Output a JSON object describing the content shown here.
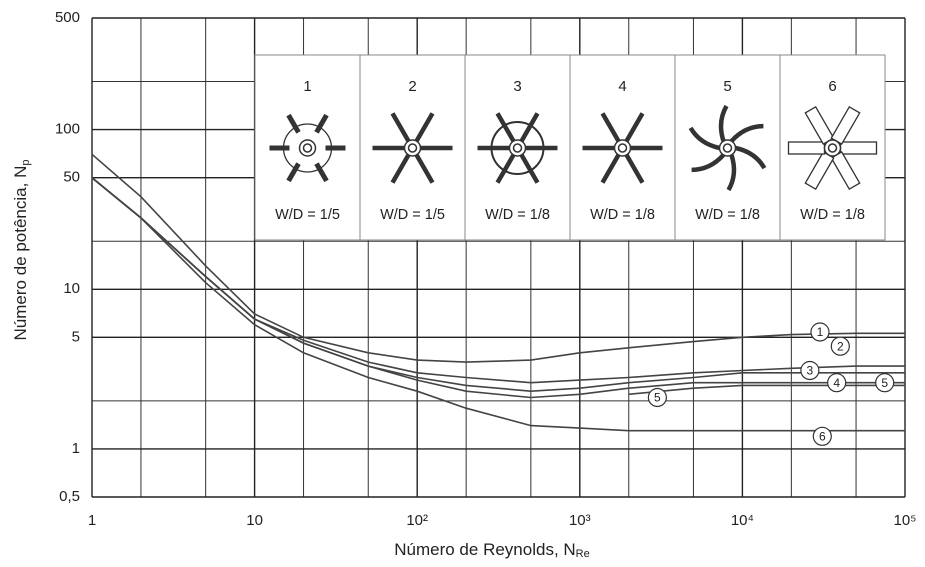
{
  "chart_data": {
    "type": "line",
    "x_label": "Número de Reynolds, N",
    "x_label_sub": "Re",
    "y_label": "Número de potência, N",
    "y_label_sub": "p",
    "log_x": true,
    "log_y": true,
    "grid": true,
    "minor_grid": [
      2,
      5
    ],
    "xlim": [
      1,
      100000
    ],
    "xticks": [
      1,
      10,
      {
        "value": 100,
        "label": "10²"
      },
      {
        "value": 1000,
        "label": "10³"
      },
      {
        "value": 10000,
        "label": "10⁴"
      },
      {
        "value": 100000,
        "label": "10⁵"
      }
    ],
    "ylim": [
      0.5,
      500
    ],
    "yticks": [
      {
        "value": 0.5,
        "label": "0,5"
      },
      1,
      5,
      10,
      50,
      100,
      500
    ],
    "x": [
      1,
      2,
      5,
      10,
      20,
      50,
      100,
      200,
      500,
      1000,
      2000,
      5000,
      10000,
      20000,
      50000,
      100000
    ],
    "series": [
      {
        "name": "1",
        "color": "#444444",
        "values": [
          70,
          38,
          14,
          7,
          5,
          4,
          3.6,
          3.5,
          3.6,
          4,
          4.3,
          4.7,
          5,
          5.2,
          5.3,
          5.3
        ]
      },
      {
        "name": "2",
        "color": "#444444",
        "values": [
          50,
          28,
          12,
          6.5,
          4.8,
          3.5,
          3,
          2.8,
          2.6,
          2.7,
          2.8,
          3,
          3.1,
          3.2,
          3.3,
          3.3
        ]
      },
      {
        "name": "3",
        "color": "#444444",
        "values": [
          50,
          28,
          12,
          6.5,
          4.6,
          3.3,
          2.8,
          2.5,
          2.3,
          2.4,
          2.6,
          2.8,
          3,
          3,
          3,
          3
        ]
      },
      {
        "name": "4",
        "color": "#444444",
        "values": [
          50,
          28,
          12,
          6.5,
          4.6,
          3.3,
          2.7,
          2.3,
          2.1,
          2.2,
          2.4,
          2.6,
          2.6,
          2.6,
          2.6,
          2.6
        ]
      },
      {
        "name": "5",
        "color": "#444444",
        "values": [
          null,
          null,
          null,
          null,
          null,
          null,
          null,
          null,
          null,
          null,
          2.2,
          2.4,
          2.5,
          2.5,
          2.5,
          2.5
        ]
      },
      {
        "name": "6",
        "color": "#444444",
        "values": [
          50,
          28,
          11,
          6,
          4,
          2.8,
          2.3,
          1.8,
          1.4,
          1.35,
          1.3,
          1.3,
          1.3,
          1.3,
          1.3,
          1.3
        ]
      }
    ],
    "impellers": [
      {
        "label": "1",
        "ratio": "W/D = 1/5"
      },
      {
        "label": "2",
        "ratio": "W/D = 1/5"
      },
      {
        "label": "3",
        "ratio": "W/D = 1/8"
      },
      {
        "label": "4",
        "ratio": "W/D = 1/8"
      },
      {
        "label": "5",
        "ratio": "W/D = 1/8"
      },
      {
        "label": "6",
        "ratio": "W/D = 1/8"
      }
    ]
  }
}
